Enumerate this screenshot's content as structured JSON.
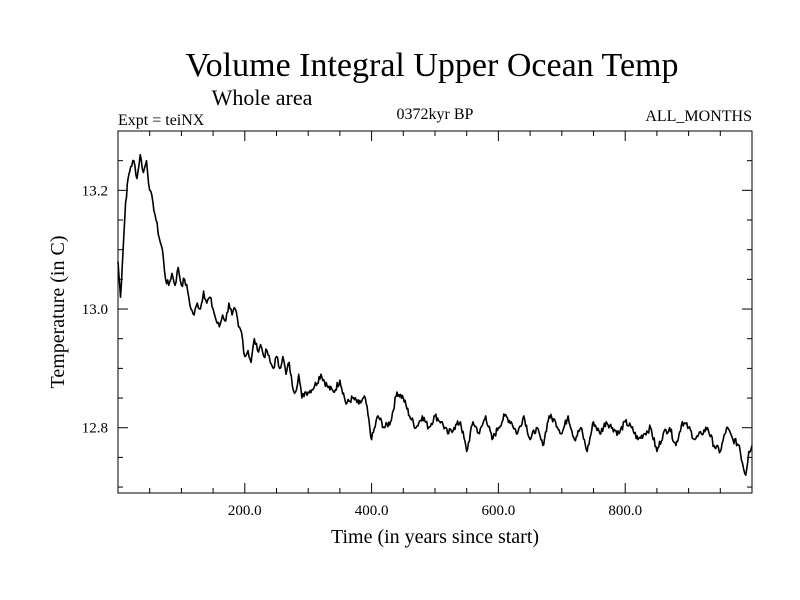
{
  "chart_data": {
    "type": "line",
    "title": "Volume Integral Upper Ocean Temp",
    "subtitle": "Whole area",
    "expt_label": "Expt = teiNX",
    "period_label": "0372kyr BP",
    "months_label": "ALL_MONTHS",
    "xlabel": "Time (in years since start)",
    "ylabel": "Temperature (in C)",
    "xlim": [
      0,
      1000
    ],
    "ylim": [
      12.69,
      13.3
    ],
    "x_ticks": [
      200,
      400,
      600,
      800
    ],
    "x_tick_labels": [
      "200.0",
      "400.0",
      "600.0",
      "800.0"
    ],
    "y_ticks": [
      12.8,
      13.0,
      13.2
    ],
    "y_tick_labels": [
      "12.8",
      "13.0",
      "13.2"
    ],
    "grid": false,
    "series": [
      {
        "name": "teiNX",
        "x": [
          0,
          4,
          8,
          12,
          16,
          20,
          25,
          30,
          35,
          40,
          45,
          50,
          55,
          60,
          65,
          70,
          75,
          80,
          85,
          90,
          95,
          100,
          105,
          110,
          115,
          120,
          125,
          130,
          135,
          140,
          145,
          150,
          155,
          160,
          165,
          170,
          175,
          180,
          185,
          190,
          195,
          200,
          205,
          210,
          215,
          220,
          225,
          230,
          235,
          240,
          245,
          250,
          255,
          260,
          265,
          270,
          275,
          280,
          285,
          290,
          295,
          300,
          310,
          320,
          330,
          340,
          350,
          360,
          370,
          380,
          390,
          400,
          410,
          420,
          430,
          440,
          450,
          460,
          470,
          480,
          490,
          500,
          510,
          520,
          530,
          540,
          550,
          560,
          570,
          580,
          590,
          600,
          610,
          620,
          630,
          640,
          650,
          660,
          670,
          680,
          690,
          700,
          710,
          720,
          730,
          740,
          750,
          760,
          770,
          780,
          790,
          800,
          810,
          820,
          830,
          840,
          850,
          860,
          870,
          880,
          890,
          900,
          910,
          920,
          930,
          940,
          950,
          960,
          970,
          980,
          985,
          990,
          995,
          1000
        ],
        "values": [
          13.08,
          13.02,
          13.1,
          13.18,
          13.22,
          13.24,
          13.25,
          13.22,
          13.26,
          13.23,
          13.25,
          13.2,
          13.18,
          13.15,
          13.12,
          13.1,
          13.05,
          13.04,
          13.06,
          13.04,
          13.07,
          13.04,
          13.05,
          13.03,
          13.0,
          12.99,
          13.01,
          13.0,
          13.03,
          13.01,
          13.02,
          13.0,
          12.98,
          12.97,
          12.99,
          12.98,
          13.01,
          12.99,
          13.0,
          12.97,
          12.96,
          12.92,
          12.93,
          12.91,
          12.95,
          12.93,
          12.94,
          12.92,
          12.93,
          12.91,
          12.9,
          12.92,
          12.9,
          12.92,
          12.89,
          12.91,
          12.87,
          12.86,
          12.89,
          12.85,
          12.86,
          12.86,
          12.87,
          12.89,
          12.87,
          12.86,
          12.88,
          12.84,
          12.85,
          12.84,
          12.85,
          12.78,
          12.82,
          12.8,
          12.81,
          12.86,
          12.85,
          12.82,
          12.8,
          12.82,
          12.8,
          12.82,
          12.81,
          12.79,
          12.8,
          12.81,
          12.76,
          12.81,
          12.79,
          12.82,
          12.78,
          12.8,
          12.82,
          12.81,
          12.79,
          12.82,
          12.78,
          12.8,
          12.77,
          12.82,
          12.81,
          12.79,
          12.82,
          12.78,
          12.8,
          12.76,
          12.81,
          12.79,
          12.81,
          12.8,
          12.79,
          12.81,
          12.8,
          12.78,
          12.79,
          12.8,
          12.76,
          12.79,
          12.8,
          12.77,
          12.81,
          12.8,
          12.78,
          12.79,
          12.8,
          12.77,
          12.76,
          12.8,
          12.78,
          12.77,
          12.74,
          12.72,
          12.76,
          12.77
        ]
      }
    ]
  }
}
